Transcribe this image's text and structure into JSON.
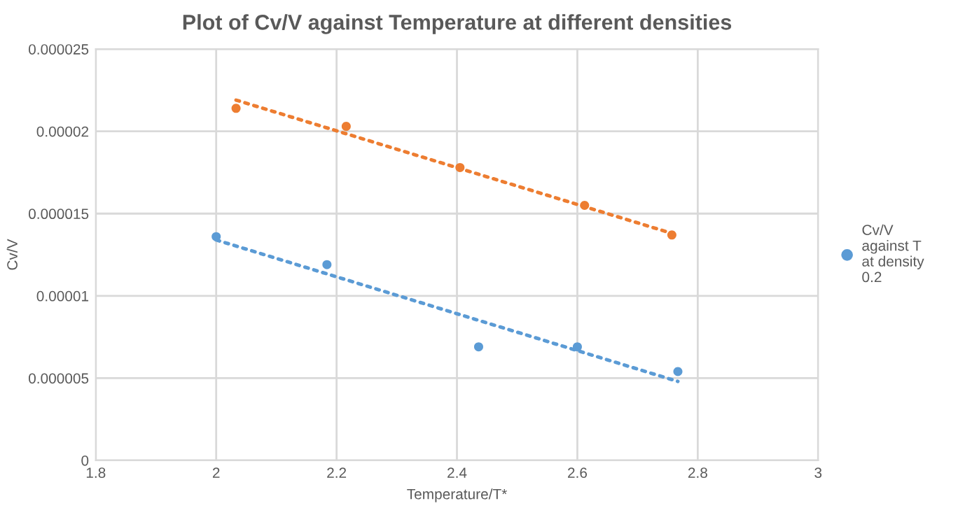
{
  "chart_data": {
    "type": "scatter",
    "title": "Plot of Cv/V against Temperature at different densities",
    "xlabel": "Temperature/T*",
    "ylabel": "Cv/V",
    "series": [
      {
        "name": "Cv/V against T at density 0.2",
        "marker": "circle",
        "color": "#5b9bd5",
        "x": [
          2.0,
          2.184,
          2.436,
          2.6,
          2.767
        ],
        "values": [
          1.36e-05,
          1.19e-05,
          6.9e-06,
          6.9e-06,
          5.4e-06
        ]
      },
      {
        "color": "#ed7d31",
        "marker": "circle",
        "x": [
          2.033,
          2.216,
          2.405,
          2.612,
          2.757
        ],
        "values": [
          2.14e-05,
          2.03e-05,
          1.78e-05,
          1.55e-05,
          1.37e-05
        ]
      },
      {
        "type": "line",
        "marker": "none",
        "line_style": "dotted",
        "color": "#5b9bd5",
        "x": [
          2.0,
          2.767
        ],
        "values": [
          1.34e-05,
          4.8e-06
        ]
      },
      {
        "type": "line",
        "marker": "none",
        "line_style": "dotted",
        "color": "#ed7d31",
        "x": [
          2.033,
          2.757
        ],
        "values": [
          2.19e-05,
          1.38e-05
        ]
      }
    ],
    "xlim": [
      1.8,
      3
    ],
    "xticks": [
      1.8,
      2,
      2.2,
      2.4,
      2.6,
      2.8,
      3
    ],
    "ylim": [
      0,
      2.5e-05
    ],
    "yticks": [
      0,
      {
        "value": 5e-06,
        "label": "0.000005"
      },
      {
        "value": 1e-05,
        "label": "0.00001"
      },
      {
        "value": 1.5e-05,
        "label": "0.000015"
      },
      {
        "value": 2e-05,
        "label": "0.00002"
      },
      {
        "value": 2.5e-05,
        "label": "0.000025"
      }
    ],
    "grid": true,
    "legend": "right"
  }
}
